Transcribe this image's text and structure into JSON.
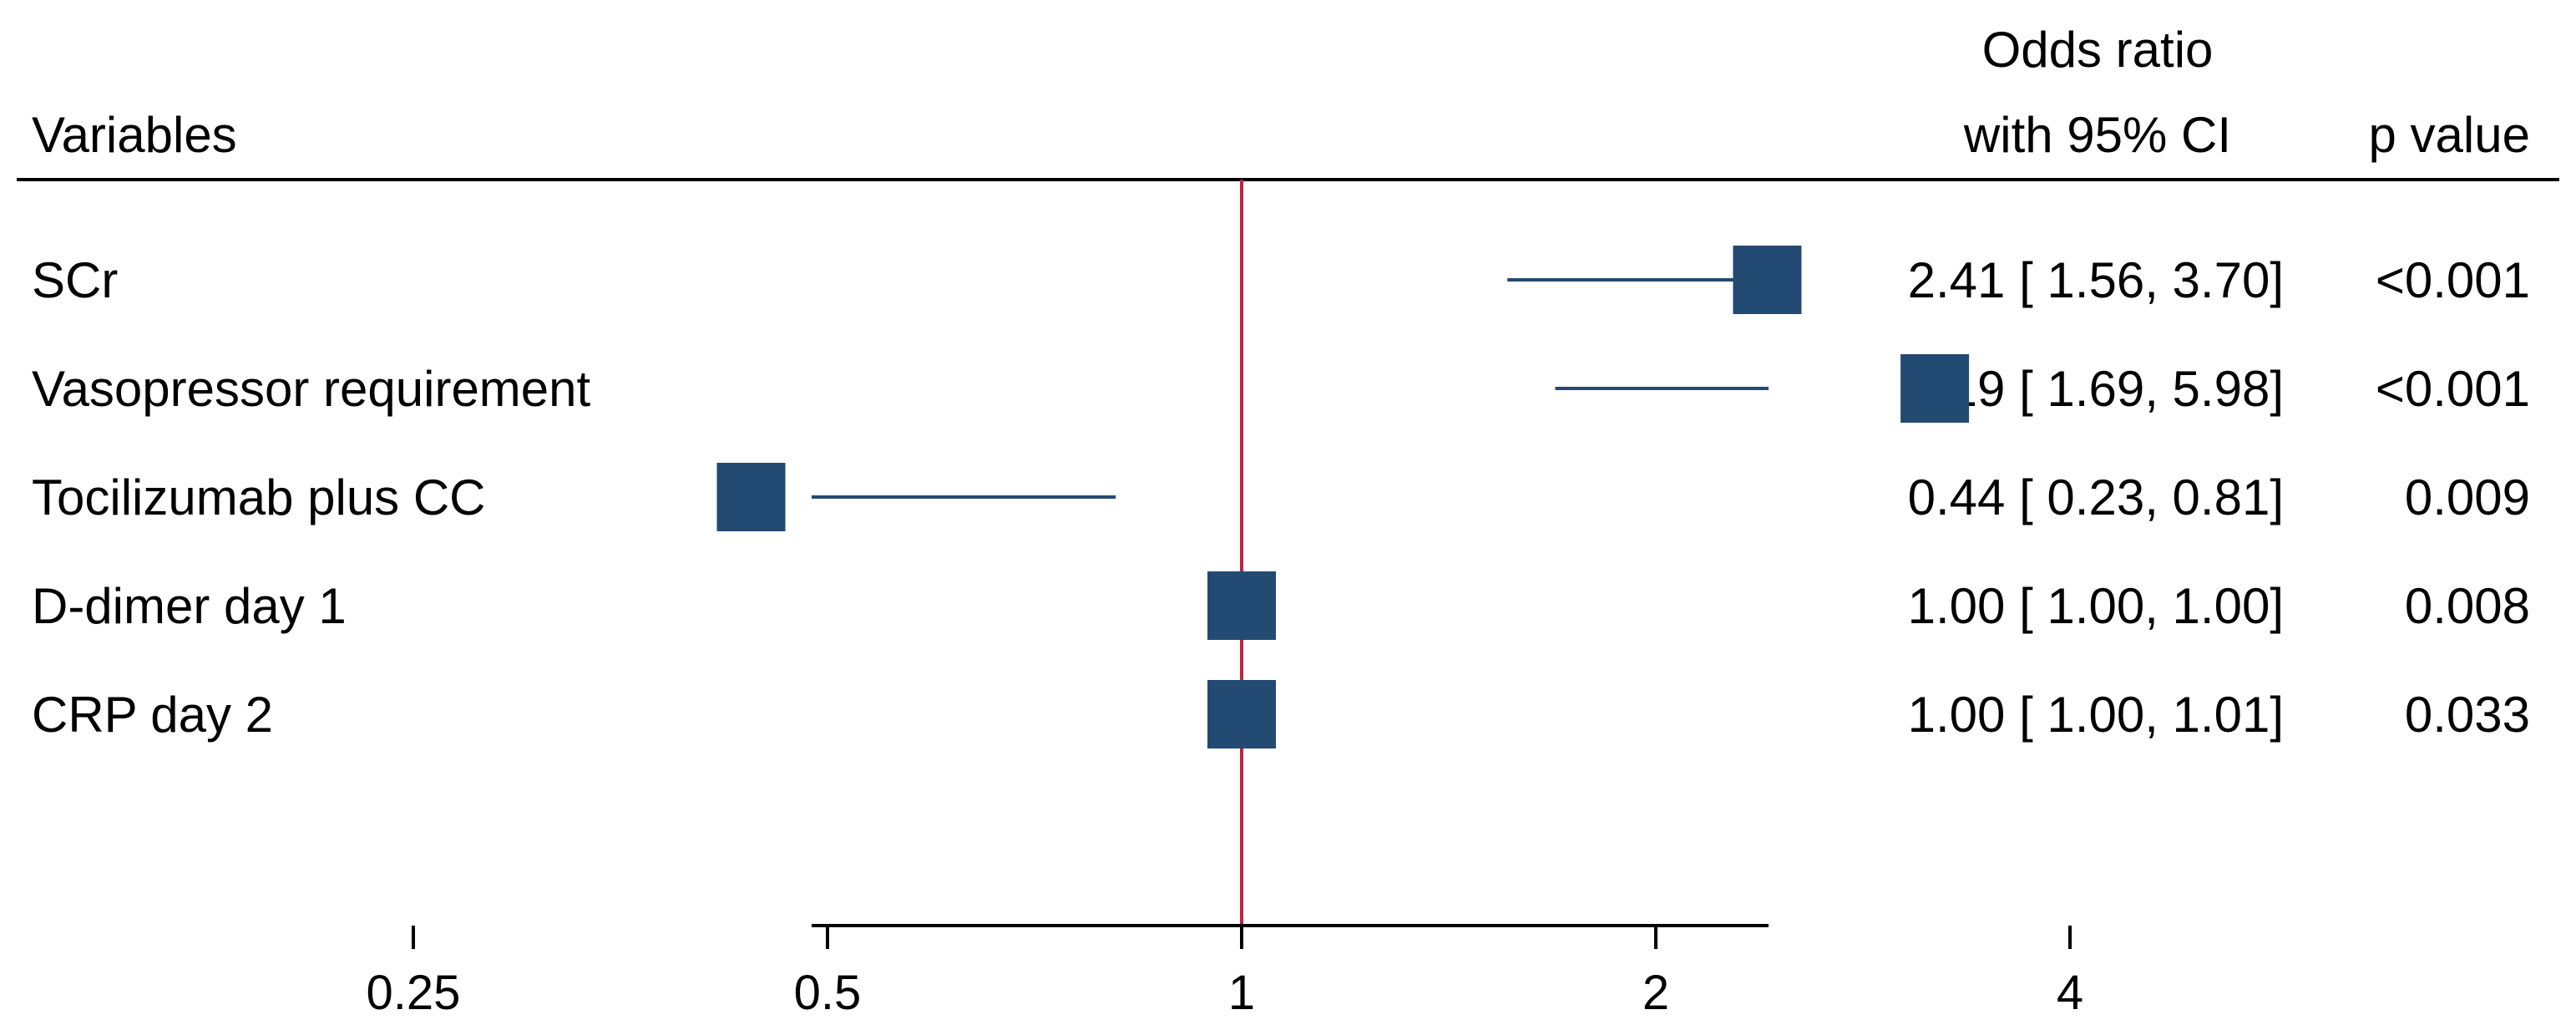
{
  "chart_data": {
    "type": "forest",
    "header": {
      "variables": "Variables",
      "or_line1": "Odds ratio",
      "or_line2": "with 95% CI",
      "pvalue": "p value"
    },
    "rows": [
      {
        "variable": "SCr",
        "or": 2.41,
        "lo": 1.56,
        "hi": 3.7,
        "or_text": "2.41 [ 1.56,  3.70]",
        "p_text": "<0.001"
      },
      {
        "variable": "Vasopressor requirement",
        "or": 3.19,
        "lo": 1.69,
        "hi": 5.98,
        "or_text": "3.19 [ 1.69,  5.98]",
        "p_text": "<0.001"
      },
      {
        "variable": "Tocilizumab plus CC",
        "or": 0.44,
        "lo": 0.23,
        "hi": 0.81,
        "or_text": "0.44 [ 0.23,  0.81]",
        "p_text": "0.009"
      },
      {
        "variable": "D-dimer day 1",
        "or": 1.0,
        "lo": 1.0,
        "hi": 1.0,
        "or_text": "1.00 [ 1.00,  1.00]",
        "p_text": "0.008"
      },
      {
        "variable": "CRP day 2",
        "or": 1.0,
        "lo": 1.0,
        "hi": 1.01,
        "or_text": "1.00 [ 1.00,  1.01]",
        "p_text": "0.033"
      }
    ],
    "x_axis": {
      "scale": "log",
      "range": [
        0.23,
        5.98
      ],
      "ticks": [
        0.25,
        0.5,
        1,
        2,
        4
      ],
      "tick_labels": [
        "0.25",
        "0.5",
        "1",
        "2",
        "4"
      ],
      "reference": 1
    },
    "colors": {
      "marker": "#234a73",
      "ci_line": "#234a73",
      "reference_line": "#c0233a",
      "rule": "#000000"
    }
  }
}
